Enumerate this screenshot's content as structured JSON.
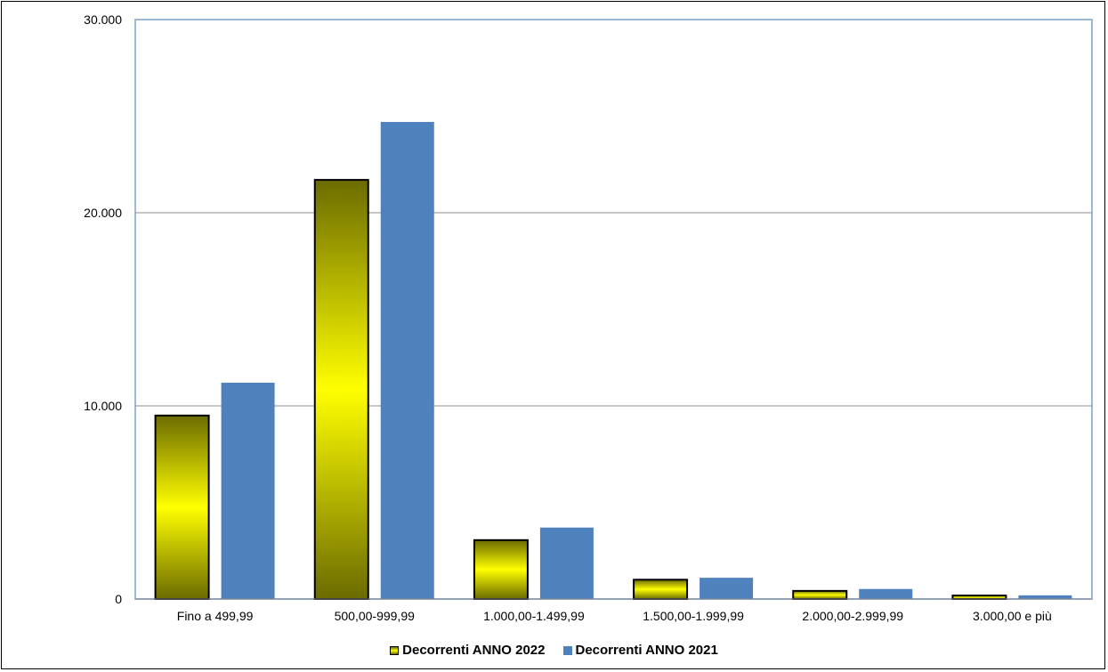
{
  "chart_data": {
    "type": "bar",
    "categories": [
      "Fino a 499,99",
      "500,00-999,99",
      "1.000,00-1.499,99",
      "1.500,00-1.999,99",
      "2.000,00-2.999,99",
      "3.000,00 e più"
    ],
    "series": [
      {
        "name": "Decorrenti ANNO 2022",
        "values": [
          9500,
          21700,
          3050,
          1000,
          420,
          180
        ],
        "color": "#ffff00"
      },
      {
        "name": "Decorrenti ANNO 2021",
        "values": [
          11200,
          24700,
          3700,
          1100,
          520,
          190
        ],
        "color": "#4f81bd"
      }
    ],
    "yticks": [
      "0",
      "10.000",
      "20.000",
      "30.000"
    ],
    "ylim": [
      0,
      30000
    ],
    "grid": true,
    "legend_position": "bottom",
    "xlabel": "",
    "ylabel": ""
  }
}
